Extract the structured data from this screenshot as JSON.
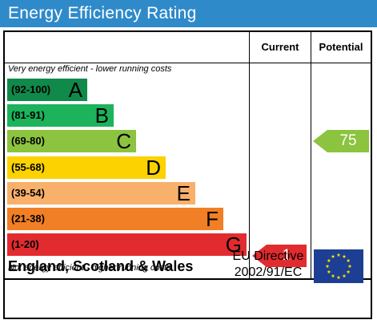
{
  "title": "Energy Efficiency Rating",
  "headers": {
    "current": "Current",
    "potential": "Potential"
  },
  "notes": {
    "top": "Very energy efficient - lower running costs",
    "bottom": "Not energy efficient - higher running costs"
  },
  "bands": [
    {
      "range": "(92-100)",
      "letter": "A",
      "color": "#0f8a4a"
    },
    {
      "range": "(81-91)",
      "letter": "B",
      "color": "#1cb35b"
    },
    {
      "range": "(69-80)",
      "letter": "C",
      "color": "#8cc33f"
    },
    {
      "range": "(55-68)",
      "letter": "D",
      "color": "#fcd200"
    },
    {
      "range": "(39-54)",
      "letter": "E",
      "color": "#f8b06b"
    },
    {
      "range": "(21-38)",
      "letter": "F",
      "color": "#f17f25"
    },
    {
      "range": "(1-20)",
      "letter": "G",
      "color": "#e22b2f"
    }
  ],
  "current_rating": {
    "value": "1",
    "band": "G",
    "color": "#e22b2f"
  },
  "potential_rating": {
    "value": "75",
    "band": "C",
    "color": "#8cc33f"
  },
  "footer": {
    "country": "England, Scotland & Wales",
    "directive_line1": "EU Directive",
    "directive_line2": "2002/91/EC"
  },
  "icons": {
    "eu_flag": "eu-flag-icon"
  }
}
